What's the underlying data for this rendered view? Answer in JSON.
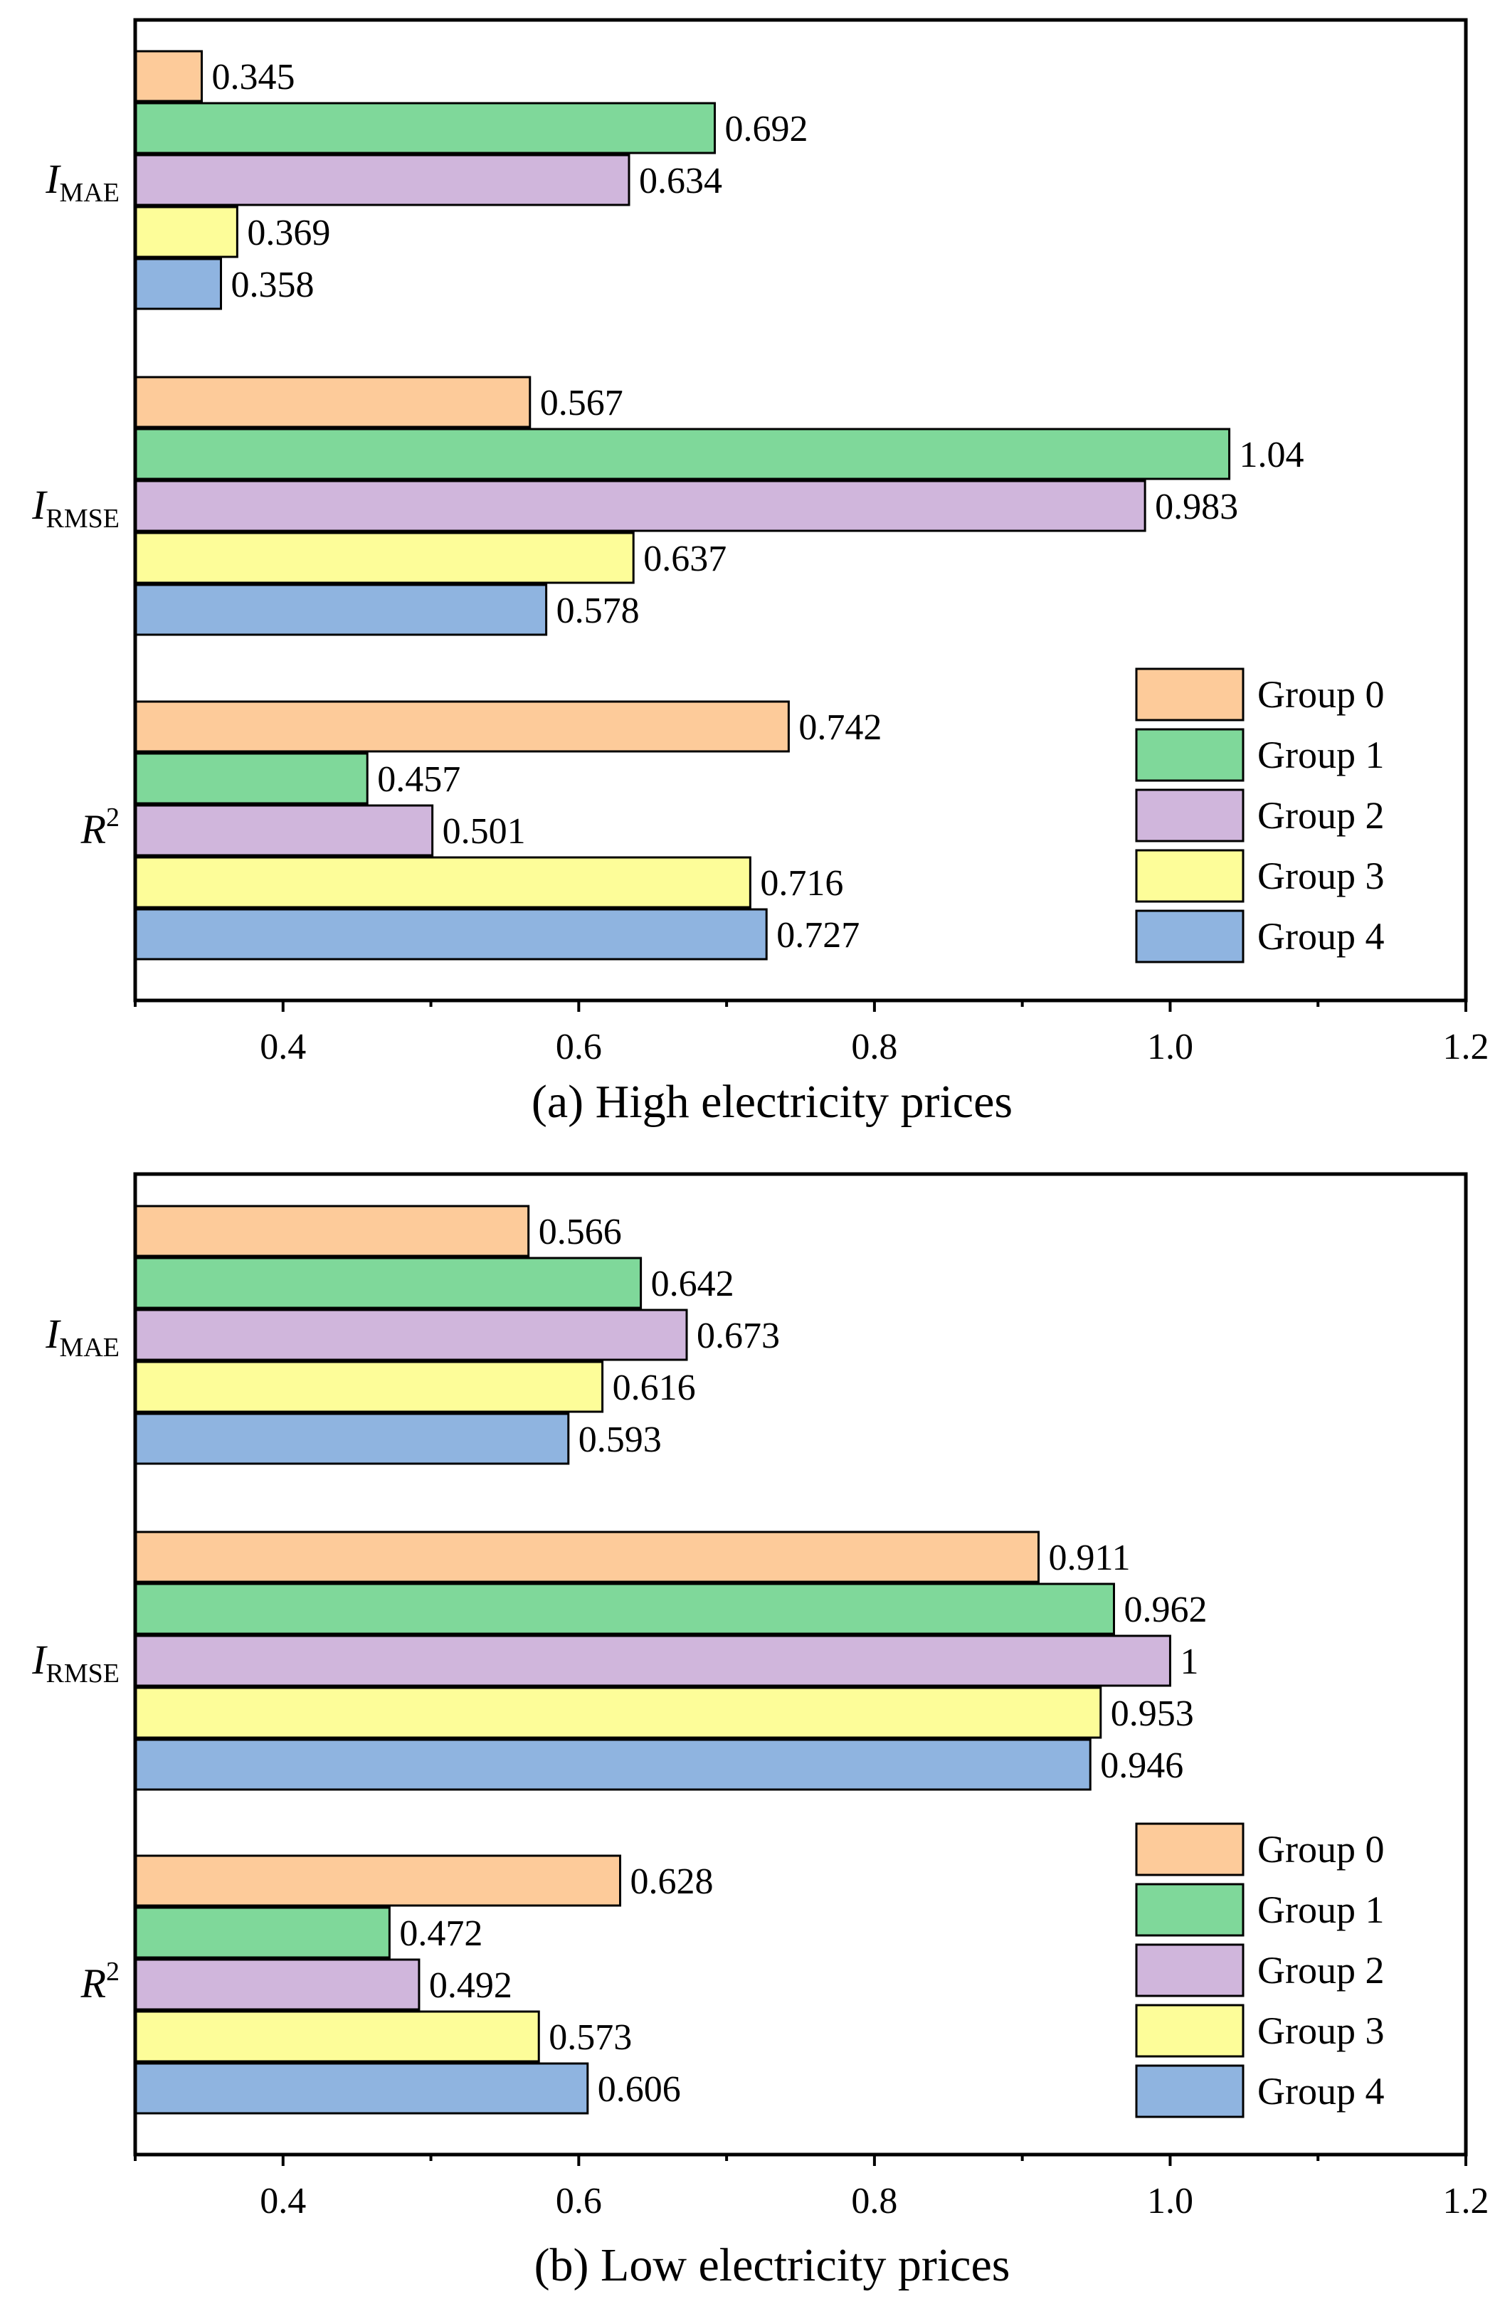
{
  "chart_data": [
    {
      "type": "bar",
      "orientation": "horizontal",
      "title": "(a) High electricity prices",
      "xlim": [
        0.3,
        1.2
      ],
      "xticks": [
        "0.4",
        "0.6",
        "0.8",
        "1.0",
        "1.2"
      ],
      "categories": [
        {
          "main": "I",
          "sub": "MAE",
          "sup": ""
        },
        {
          "main": "I",
          "sub": "RMSE",
          "sup": ""
        },
        {
          "main": "R",
          "sub": "",
          "sup": "2"
        }
      ],
      "legend_position": "bottom-right",
      "series": [
        {
          "name": "Group 0",
          "color": "#FDCB9A",
          "values": [
            0.345,
            0.567,
            0.742
          ],
          "labels": [
            "0.345",
            "0.567",
            "0.742"
          ]
        },
        {
          "name": "Group 1",
          "color": "#7FD89A",
          "values": [
            0.692,
            1.04,
            0.457
          ],
          "labels": [
            "0.692",
            "1.04",
            "0.457"
          ]
        },
        {
          "name": "Group 2",
          "color": "#D0B6DC",
          "values": [
            0.634,
            0.983,
            0.501
          ],
          "labels": [
            "0.634",
            "0.983",
            "0.501"
          ]
        },
        {
          "name": "Group 3",
          "color": "#FDFD99",
          "values": [
            0.369,
            0.637,
            0.716
          ],
          "labels": [
            "0.369",
            "0.637",
            "0.716"
          ]
        },
        {
          "name": "Group 4",
          "color": "#8FB4E0",
          "values": [
            0.358,
            0.578,
            0.727
          ],
          "labels": [
            "0.358",
            "0.578",
            "0.727"
          ]
        }
      ]
    },
    {
      "type": "bar",
      "orientation": "horizontal",
      "title": "(b) Low electricity prices",
      "xlim": [
        0.3,
        1.2
      ],
      "xticks": [
        "0.4",
        "0.6",
        "0.8",
        "1.0",
        "1.2"
      ],
      "categories": [
        {
          "main": "I",
          "sub": "MAE",
          "sup": ""
        },
        {
          "main": "I",
          "sub": "RMSE",
          "sup": ""
        },
        {
          "main": "R",
          "sub": "",
          "sup": "2"
        }
      ],
      "legend_position": "bottom-right",
      "series": [
        {
          "name": "Group 0",
          "color": "#FDCB9A",
          "values": [
            0.566,
            0.911,
            0.628
          ],
          "labels": [
            "0.566",
            "0.911",
            "0.628"
          ]
        },
        {
          "name": "Group 1",
          "color": "#7FD89A",
          "values": [
            0.642,
            0.962,
            0.472
          ],
          "labels": [
            "0.642",
            "0.962",
            "0.472"
          ]
        },
        {
          "name": "Group 2",
          "color": "#D0B6DC",
          "values": [
            0.673,
            1.0,
            0.492
          ],
          "labels": [
            "0.673",
            "1",
            "0.492"
          ]
        },
        {
          "name": "Group 3",
          "color": "#FDFD99",
          "values": [
            0.616,
            0.953,
            0.573
          ],
          "labels": [
            "0.616",
            "0.953",
            "0.573"
          ]
        },
        {
          "name": "Group 4",
          "color": "#8FB4E0",
          "values": [
            0.593,
            0.946,
            0.606
          ],
          "labels": [
            "0.593",
            "0.946",
            "0.606"
          ]
        }
      ]
    }
  ]
}
